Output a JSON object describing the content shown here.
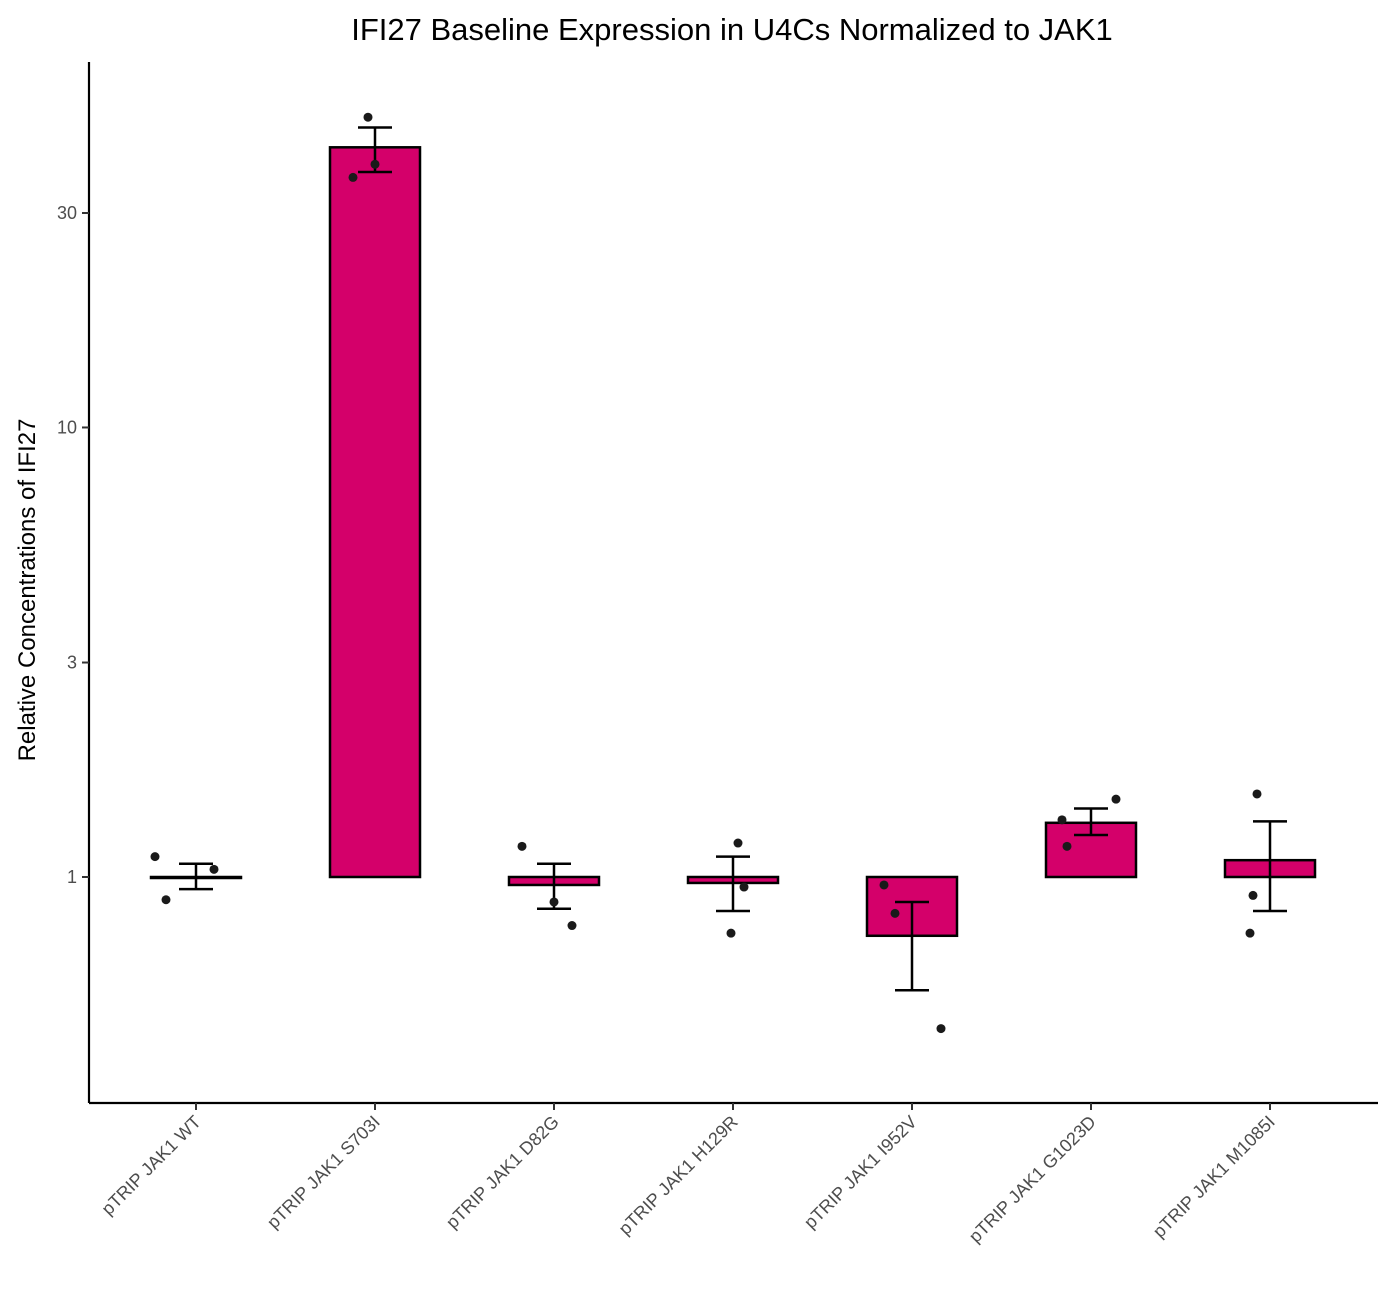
{
  "chart_data": {
    "type": "bar",
    "title": "IFI27 Baseline Expression in U4Cs Normalized to JAK1",
    "xlabel": "",
    "ylabel": "Relative Concentrations of IFI27",
    "y_scale": "log10",
    "ylim": [
      0.3,
      60
    ],
    "y_ticks": [
      1,
      3,
      10,
      30
    ],
    "y_tick_labels": [
      "1",
      "3",
      "10",
      "30"
    ],
    "baseline": 1,
    "bar_color": "#d4006a",
    "point_color": "#1a1a1a",
    "categories": [
      "pTRIP JAK1 WT",
      "pTRIP JAK1 S703I",
      "pTRIP JAK1 D82G",
      "pTRIP JAK1 H129R",
      "pTRIP JAK1 I952V",
      "pTRIP JAK1 G1023D",
      "pTRIP JAK1 M1085I"
    ],
    "values": [
      1.0,
      42.0,
      0.96,
      0.97,
      0.74,
      1.32,
      1.09
    ],
    "error_low": [
      0.94,
      37.0,
      0.85,
      0.84,
      0.56,
      1.24,
      0.84
    ],
    "error_high": [
      1.07,
      46.5,
      1.07,
      1.11,
      0.88,
      1.42,
      1.33
    ],
    "points": [
      [
        1.11,
        0.89,
        1.04
      ],
      [
        49.0,
        36.0,
        38.5
      ],
      [
        1.17,
        0.88,
        0.78
      ],
      [
        1.19,
        0.95,
        0.75
      ],
      [
        0.96,
        0.83,
        0.46
      ],
      [
        1.34,
        1.17,
        1.49
      ],
      [
        1.53,
        0.91,
        0.75
      ]
    ],
    "grid": false,
    "legend": "none"
  }
}
